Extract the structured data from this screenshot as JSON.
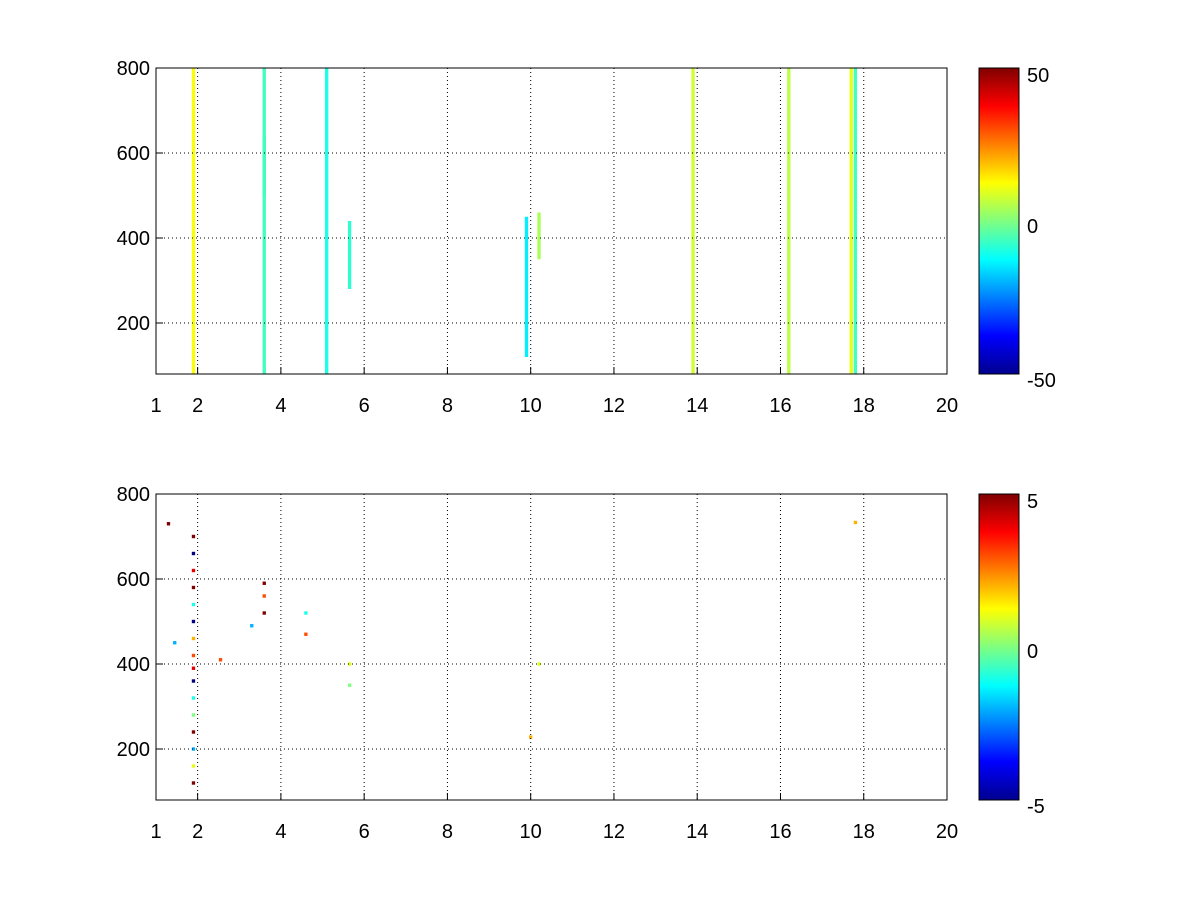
{
  "chart_data": [
    {
      "type": "heatmap",
      "title": "",
      "xlabel": "",
      "ylabel": "",
      "xlim": [
        1,
        20
      ],
      "ylim": [
        80,
        800
      ],
      "x_ticks": [
        1,
        2,
        4,
        6,
        8,
        10,
        12,
        14,
        16,
        18,
        20
      ],
      "x_tick_labels": [
        "1",
        "2",
        "4",
        "6",
        "8",
        "10",
        "12",
        "14",
        "16",
        "18",
        "20"
      ],
      "y_ticks": [
        200,
        400,
        600,
        800
      ],
      "y_tick_labels": [
        "200",
        "400",
        "600",
        "800"
      ],
      "grid": true,
      "colormap": "jet",
      "colorbar": {
        "range": [
          -50,
          50
        ],
        "tick_labels": [
          "50",
          "0",
          "-50"
        ]
      },
      "cells": [
        {
          "x": 1.9,
          "y_range": [
            80,
            800
          ],
          "value": 12
        },
        {
          "x": 3.6,
          "y_range": [
            500,
            640
          ],
          "value": -18
        },
        {
          "x": 3.6,
          "y_range": [
            80,
            800
          ],
          "value": -6
        },
        {
          "x": 5.1,
          "y_range": [
            80,
            800
          ],
          "value": -10
        },
        {
          "x": 5.65,
          "y_range": [
            280,
            440
          ],
          "value": -8
        },
        {
          "x": 9.9,
          "y_range": [
            120,
            450
          ],
          "value": -14
        },
        {
          "x": 10.2,
          "y_range": [
            350,
            460
          ],
          "value": 4
        },
        {
          "x": 13.9,
          "y_range": [
            80,
            800
          ],
          "value": 8
        },
        {
          "x": 16.2,
          "y_range": [
            80,
            800
          ],
          "value": 6
        },
        {
          "x": 17.7,
          "y_range": [
            80,
            800
          ],
          "value": 10
        },
        {
          "x": 17.8,
          "y_range": [
            80,
            800
          ],
          "value": -6
        }
      ]
    },
    {
      "type": "heatmap",
      "title": "",
      "xlabel": "",
      "ylabel": "",
      "xlim": [
        1,
        20
      ],
      "ylim": [
        80,
        800
      ],
      "x_ticks": [
        1,
        2,
        4,
        6,
        8,
        10,
        12,
        14,
        16,
        18,
        20
      ],
      "x_tick_labels": [
        "1",
        "2",
        "4",
        "6",
        "8",
        "10",
        "12",
        "14",
        "16",
        "18",
        "20"
      ],
      "y_ticks": [
        200,
        400,
        600,
        800
      ],
      "y_tick_labels": [
        "200",
        "400",
        "600",
        "800"
      ],
      "grid": true,
      "colormap": "jet",
      "colorbar": {
        "range": [
          -5,
          5
        ],
        "tick_labels": [
          "5",
          "0",
          "-5"
        ]
      },
      "cells": [
        {
          "x": 1.3,
          "y": 730,
          "value": 5
        },
        {
          "x": 1.45,
          "y": 450,
          "value": -2
        },
        {
          "x": 1.9,
          "y": 700,
          "value": 5
        },
        {
          "x": 1.9,
          "y": 660,
          "value": -5
        },
        {
          "x": 1.9,
          "y": 620,
          "value": 4
        },
        {
          "x": 1.9,
          "y": 580,
          "value": 5
        },
        {
          "x": 1.9,
          "y": 540,
          "value": -1
        },
        {
          "x": 1.9,
          "y": 500,
          "value": -5
        },
        {
          "x": 1.9,
          "y": 460,
          "value": 2
        },
        {
          "x": 1.9,
          "y": 420,
          "value": 3
        },
        {
          "x": 1.9,
          "y": 390,
          "value": 4
        },
        {
          "x": 1.9,
          "y": 360,
          "value": -5
        },
        {
          "x": 1.9,
          "y": 320,
          "value": -1
        },
        {
          "x": 1.9,
          "y": 280,
          "value": 0
        },
        {
          "x": 1.9,
          "y": 240,
          "value": 5
        },
        {
          "x": 1.9,
          "y": 200,
          "value": -2
        },
        {
          "x": 1.9,
          "y": 160,
          "value": 1
        },
        {
          "x": 1.9,
          "y": 120,
          "value": 5
        },
        {
          "x": 2.55,
          "y": 410,
          "value": 3
        },
        {
          "x": 3.3,
          "y": 490,
          "value": -2
        },
        {
          "x": 3.6,
          "y": 590,
          "value": 5
        },
        {
          "x": 3.6,
          "y": 560,
          "value": 3
        },
        {
          "x": 3.6,
          "y": 520,
          "value": 5
        },
        {
          "x": 4.6,
          "y": 520,
          "value": -1
        },
        {
          "x": 4.6,
          "y": 470,
          "value": 3
        },
        {
          "x": 5.65,
          "y": 400,
          "value": 1
        },
        {
          "x": 5.65,
          "y": 350,
          "value": 0
        },
        {
          "x": 10.0,
          "y": 228,
          "value": 2
        },
        {
          "x": 10.2,
          "y": 400,
          "value": 1
        },
        {
          "x": 17.8,
          "y": 733,
          "value": 2
        }
      ]
    }
  ]
}
